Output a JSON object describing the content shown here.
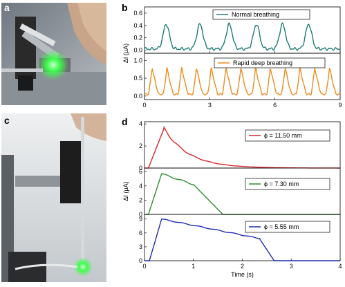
{
  "panels": {
    "a": "a",
    "b": "b",
    "c": "c",
    "d": "d"
  },
  "photos": {
    "a": {
      "description": "Photo of sensor clip with green LED near a finger",
      "colors": {
        "bg": "#9aa0a2",
        "glow": "#3dff4a"
      }
    },
    "c": {
      "description": "Photo of a stand holding a vertical rod with green LED at bottom",
      "colors": {
        "bg": "#d9dde0",
        "glow": "#3dff4a"
      }
    }
  },
  "chart_data": [
    {
      "id": "b-top",
      "type": "line",
      "panel": "b",
      "xlim": [
        0,
        9
      ],
      "ylim": [
        -0.05,
        0.7
      ],
      "yticks": [
        0.0,
        0.2,
        0.4,
        0.6
      ],
      "ytick_labels": [
        "0.0",
        "0.2",
        "0.4",
        "0.6"
      ],
      "xticks": [
        0,
        3,
        6,
        9
      ],
      "color": "#1f7a74",
      "series": [
        {
          "name": "Normal breathing",
          "peaks": [
            1.0,
            2.55,
            3.9,
            5.15,
            6.35,
            7.55
          ],
          "amplitude": 0.4,
          "baseline": 0.02
        }
      ]
    },
    {
      "id": "b-bottom",
      "type": "line",
      "panel": "b",
      "xlim": [
        0,
        9
      ],
      "ylim": [
        -0.1,
        1.2
      ],
      "yticks": [
        0.0,
        0.5,
        1.0
      ],
      "ytick_labels": [
        "0.0",
        "0.5",
        "1.0"
      ],
      "xticks": [
        0,
        3,
        6,
        9
      ],
      "xtick_labels": [
        "0",
        "3",
        "6",
        "9"
      ],
      "ylabel": "ΔI (μA)",
      "color": "#f08a1c",
      "series": [
        {
          "name": "Rapid deep breathing",
          "period": 0.68,
          "first_peak": 0.35,
          "amplitude": 0.75,
          "baseline": 0.05
        }
      ]
    },
    {
      "id": "d-1",
      "type": "line",
      "panel": "d",
      "xlim": [
        0,
        4
      ],
      "ylim": [
        0,
        4.2
      ],
      "yticks": [
        0,
        2,
        4
      ],
      "ytick_labels": [
        "0",
        "2",
        "4"
      ],
      "color": "#d9262b",
      "series": [
        {
          "name": "ϕ = 11.50 mm",
          "onset": 0.08,
          "peak_t": 0.4,
          "peak": 3.6,
          "decay": 0.5,
          "plateau": 0
        }
      ]
    },
    {
      "id": "d-2",
      "type": "line",
      "panel": "d",
      "xlim": [
        0,
        4
      ],
      "ylim": [
        0,
        6.5
      ],
      "yticks": [
        0,
        2,
        4,
        6
      ],
      "ytick_labels": [
        "0",
        "2",
        "4",
        "6"
      ],
      "ylabel": "ΔI (μA)",
      "color": "#2e8b2e",
      "series": [
        {
          "name": "ϕ = 7.30 mm",
          "onset": 0.08,
          "peak_t": 0.35,
          "peak": 5.7,
          "decay_start": 1.0,
          "level_at_decay": 4.2,
          "end": 1.6
        }
      ]
    },
    {
      "id": "d-3",
      "type": "line",
      "panel": "d",
      "xlim": [
        0,
        4
      ],
      "ylim": [
        0,
        10
      ],
      "yticks": [
        0,
        3,
        6,
        9
      ],
      "ytick_labels": [
        "0",
        "3",
        "6",
        "9"
      ],
      "xticks": [
        0,
        1,
        2,
        3,
        4
      ],
      "xtick_labels": [
        "0",
        "1",
        "2",
        "3",
        "4"
      ],
      "xlabel": "Time (s)",
      "color": "#1f2db3",
      "series": [
        {
          "name": "ϕ = 5.55 mm",
          "onset": 0.1,
          "peak_t": 0.35,
          "peak": 9.0,
          "decay_start": 2.35,
          "level_at_decay": 4.8,
          "end": 2.65
        }
      ]
    }
  ]
}
